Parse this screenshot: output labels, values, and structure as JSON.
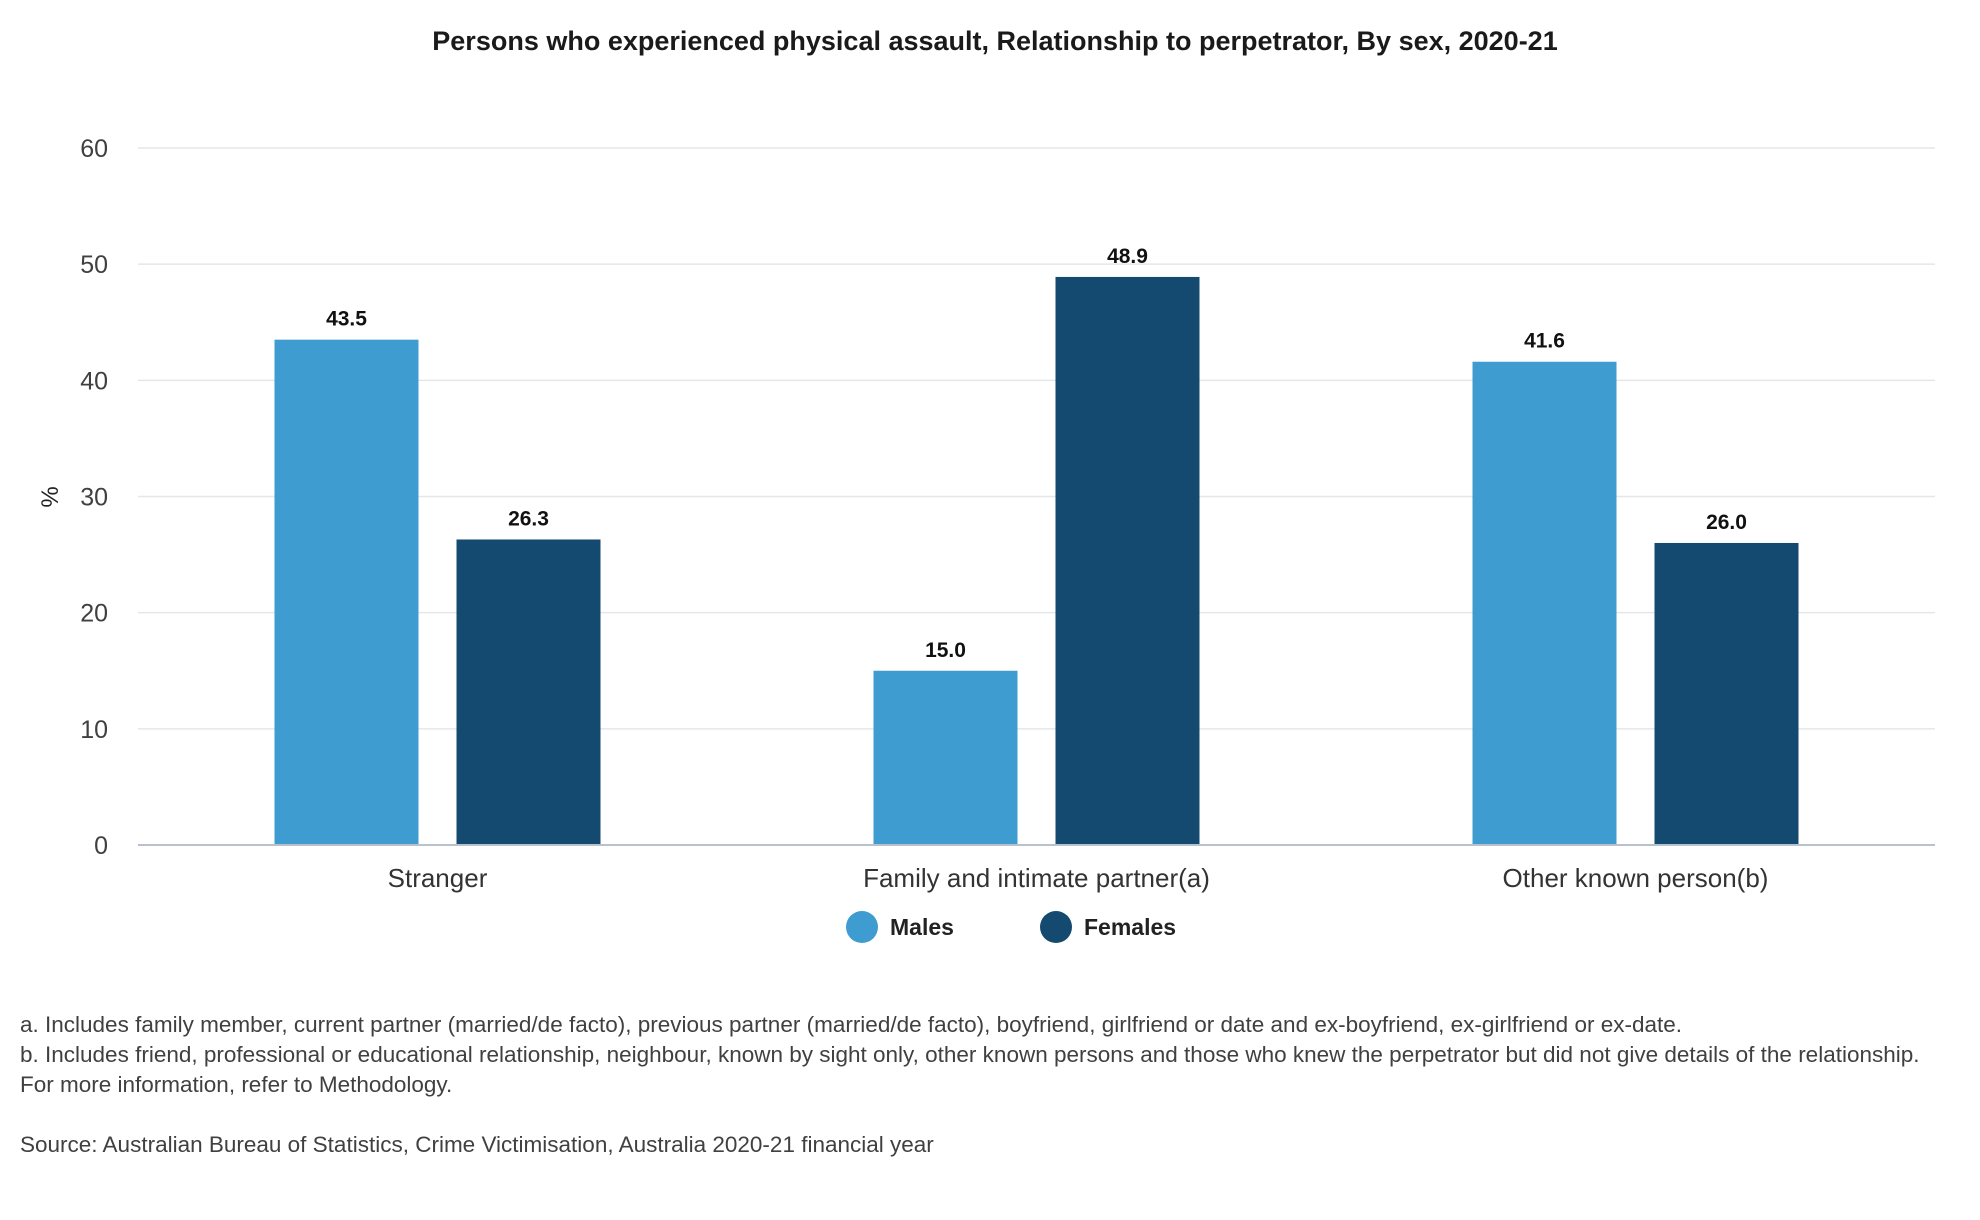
{
  "chart_data": {
    "type": "bar",
    "title": "Persons who experienced physical assault, Relationship to perpetrator, By sex, 2020-21",
    "ylabel": "%",
    "xlabel": "",
    "ylim": [
      0,
      60
    ],
    "yticks": [
      0,
      10,
      20,
      30,
      40,
      50,
      60
    ],
    "grid": true,
    "legend_position": "bottom-center",
    "categories": [
      "Stranger",
      "Family and intimate partner(a)",
      "Other known person(b)"
    ],
    "series": [
      {
        "name": "Males",
        "color": "#3e9cd1",
        "values": [
          43.5,
          15.0,
          41.6
        ],
        "labels": [
          "43.5",
          "15.0",
          "41.6"
        ]
      },
      {
        "name": "Females",
        "color": "#154a70",
        "values": [
          26.3,
          48.9,
          26.0
        ],
        "labels": [
          "26.3",
          "48.9",
          "26.0"
        ]
      }
    ]
  },
  "notes": {
    "a": "a. Includes family member, current partner (married/de facto), previous partner (married/de facto), boyfriend, girlfriend or date and ex-boyfriend, ex-girlfriend or ex-date.",
    "b": "b. Includes friend, professional or educational relationship, neighbour, known by sight only, other known persons and those who knew the perpetrator but did not give details of the relationship.",
    "more_info": "For more information, refer to Methodology.",
    "source": "Source: Australian Bureau of Statistics, Crime Victimisation, Australia 2020-21 financial year"
  }
}
